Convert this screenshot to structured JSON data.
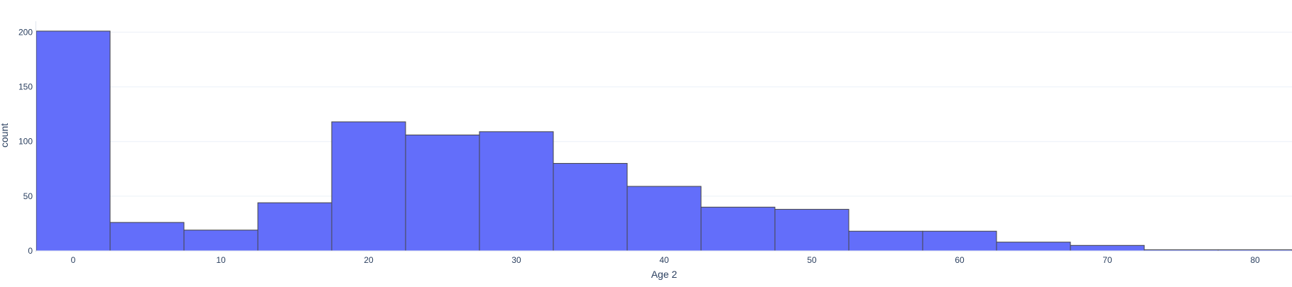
{
  "chart_data": {
    "type": "bar",
    "title": "",
    "xlabel": "Age 2",
    "ylabel": "count",
    "xlim": [
      -2.5,
      82.5
    ],
    "ylim": [
      0,
      210
    ],
    "bin_width": 5,
    "grid": true,
    "x_ticks": [
      "0",
      "10",
      "20",
      "30",
      "40",
      "50",
      "60",
      "70",
      "80"
    ],
    "x_tick_values": [
      0,
      10,
      20,
      30,
      40,
      50,
      60,
      70,
      80
    ],
    "y_ticks": [
      "0",
      "50",
      "100",
      "150",
      "200"
    ],
    "y_tick_values": [
      0,
      50,
      100,
      150,
      200
    ],
    "bins": [
      {
        "x0": -2.5,
        "x1": 2.5,
        "count": 201
      },
      {
        "x0": 2.5,
        "x1": 7.5,
        "count": 26
      },
      {
        "x0": 7.5,
        "x1": 12.5,
        "count": 19
      },
      {
        "x0": 12.5,
        "x1": 17.5,
        "count": 44
      },
      {
        "x0": 17.5,
        "x1": 22.5,
        "count": 118
      },
      {
        "x0": 22.5,
        "x1": 27.5,
        "count": 106
      },
      {
        "x0": 27.5,
        "x1": 32.5,
        "count": 109
      },
      {
        "x0": 32.5,
        "x1": 37.5,
        "count": 80
      },
      {
        "x0": 37.5,
        "x1": 42.5,
        "count": 59
      },
      {
        "x0": 42.5,
        "x1": 47.5,
        "count": 40
      },
      {
        "x0": 47.5,
        "x1": 52.5,
        "count": 38
      },
      {
        "x0": 52.5,
        "x1": 57.5,
        "count": 18
      },
      {
        "x0": 57.5,
        "x1": 62.5,
        "count": 18
      },
      {
        "x0": 62.5,
        "x1": 67.5,
        "count": 8
      },
      {
        "x0": 67.5,
        "x1": 72.5,
        "count": 5
      },
      {
        "x0": 72.5,
        "x1": 77.5,
        "count": 1
      },
      {
        "x0": 77.5,
        "x1": 82.5,
        "count": 1
      }
    ],
    "colors": {
      "bar_fill": "#636efa",
      "bar_stroke": "#444444",
      "text": "#2a3f5f",
      "grid": "#ebf0f8"
    }
  }
}
